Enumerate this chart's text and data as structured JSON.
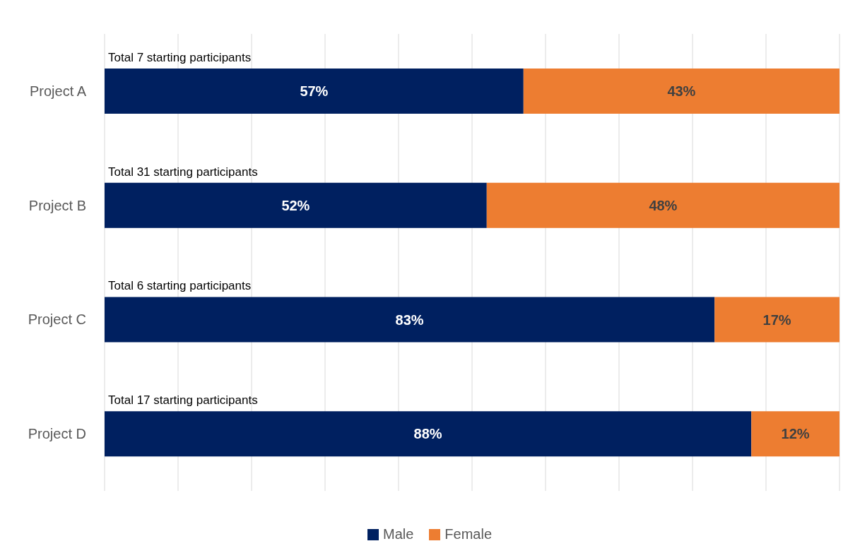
{
  "chart_data": {
    "type": "bar",
    "orientation": "horizontal",
    "stacked": true,
    "categories": [
      "Project A",
      "Project B",
      "Project C",
      "Project D"
    ],
    "series": [
      {
        "name": "Male",
        "color": "#002060",
        "values": [
          57,
          52,
          83,
          88
        ],
        "value_labels": [
          "57%",
          "52%",
          "83%",
          "88%"
        ]
      },
      {
        "name": "Female",
        "color": "#ed7d31",
        "values": [
          43,
          48,
          17,
          12
        ],
        "value_labels": [
          "43%",
          "48%",
          "17%",
          "12%"
        ]
      }
    ],
    "xlim": [
      0,
      100
    ],
    "xticks": [
      {
        "value": 0,
        "label": null
      },
      {
        "value": 10,
        "label": null
      },
      {
        "value": 20,
        "label": null
      },
      {
        "value": 30,
        "label": null
      },
      {
        "value": 40,
        "label": null
      },
      {
        "value": 50,
        "label": null
      },
      {
        "value": 60,
        "label": null
      },
      {
        "value": 70,
        "label": null
      },
      {
        "value": 80,
        "label": null
      },
      {
        "value": 90,
        "label": null
      },
      {
        "value": 100,
        "label": null
      }
    ],
    "tick_labels": "y",
    "grid": "x",
    "legend": "bottom",
    "annotations": [
      "Total 7 starting participants",
      "Total 31 starting participants",
      "Total 6 starting participants",
      "Total 17 starting participants"
    ]
  }
}
